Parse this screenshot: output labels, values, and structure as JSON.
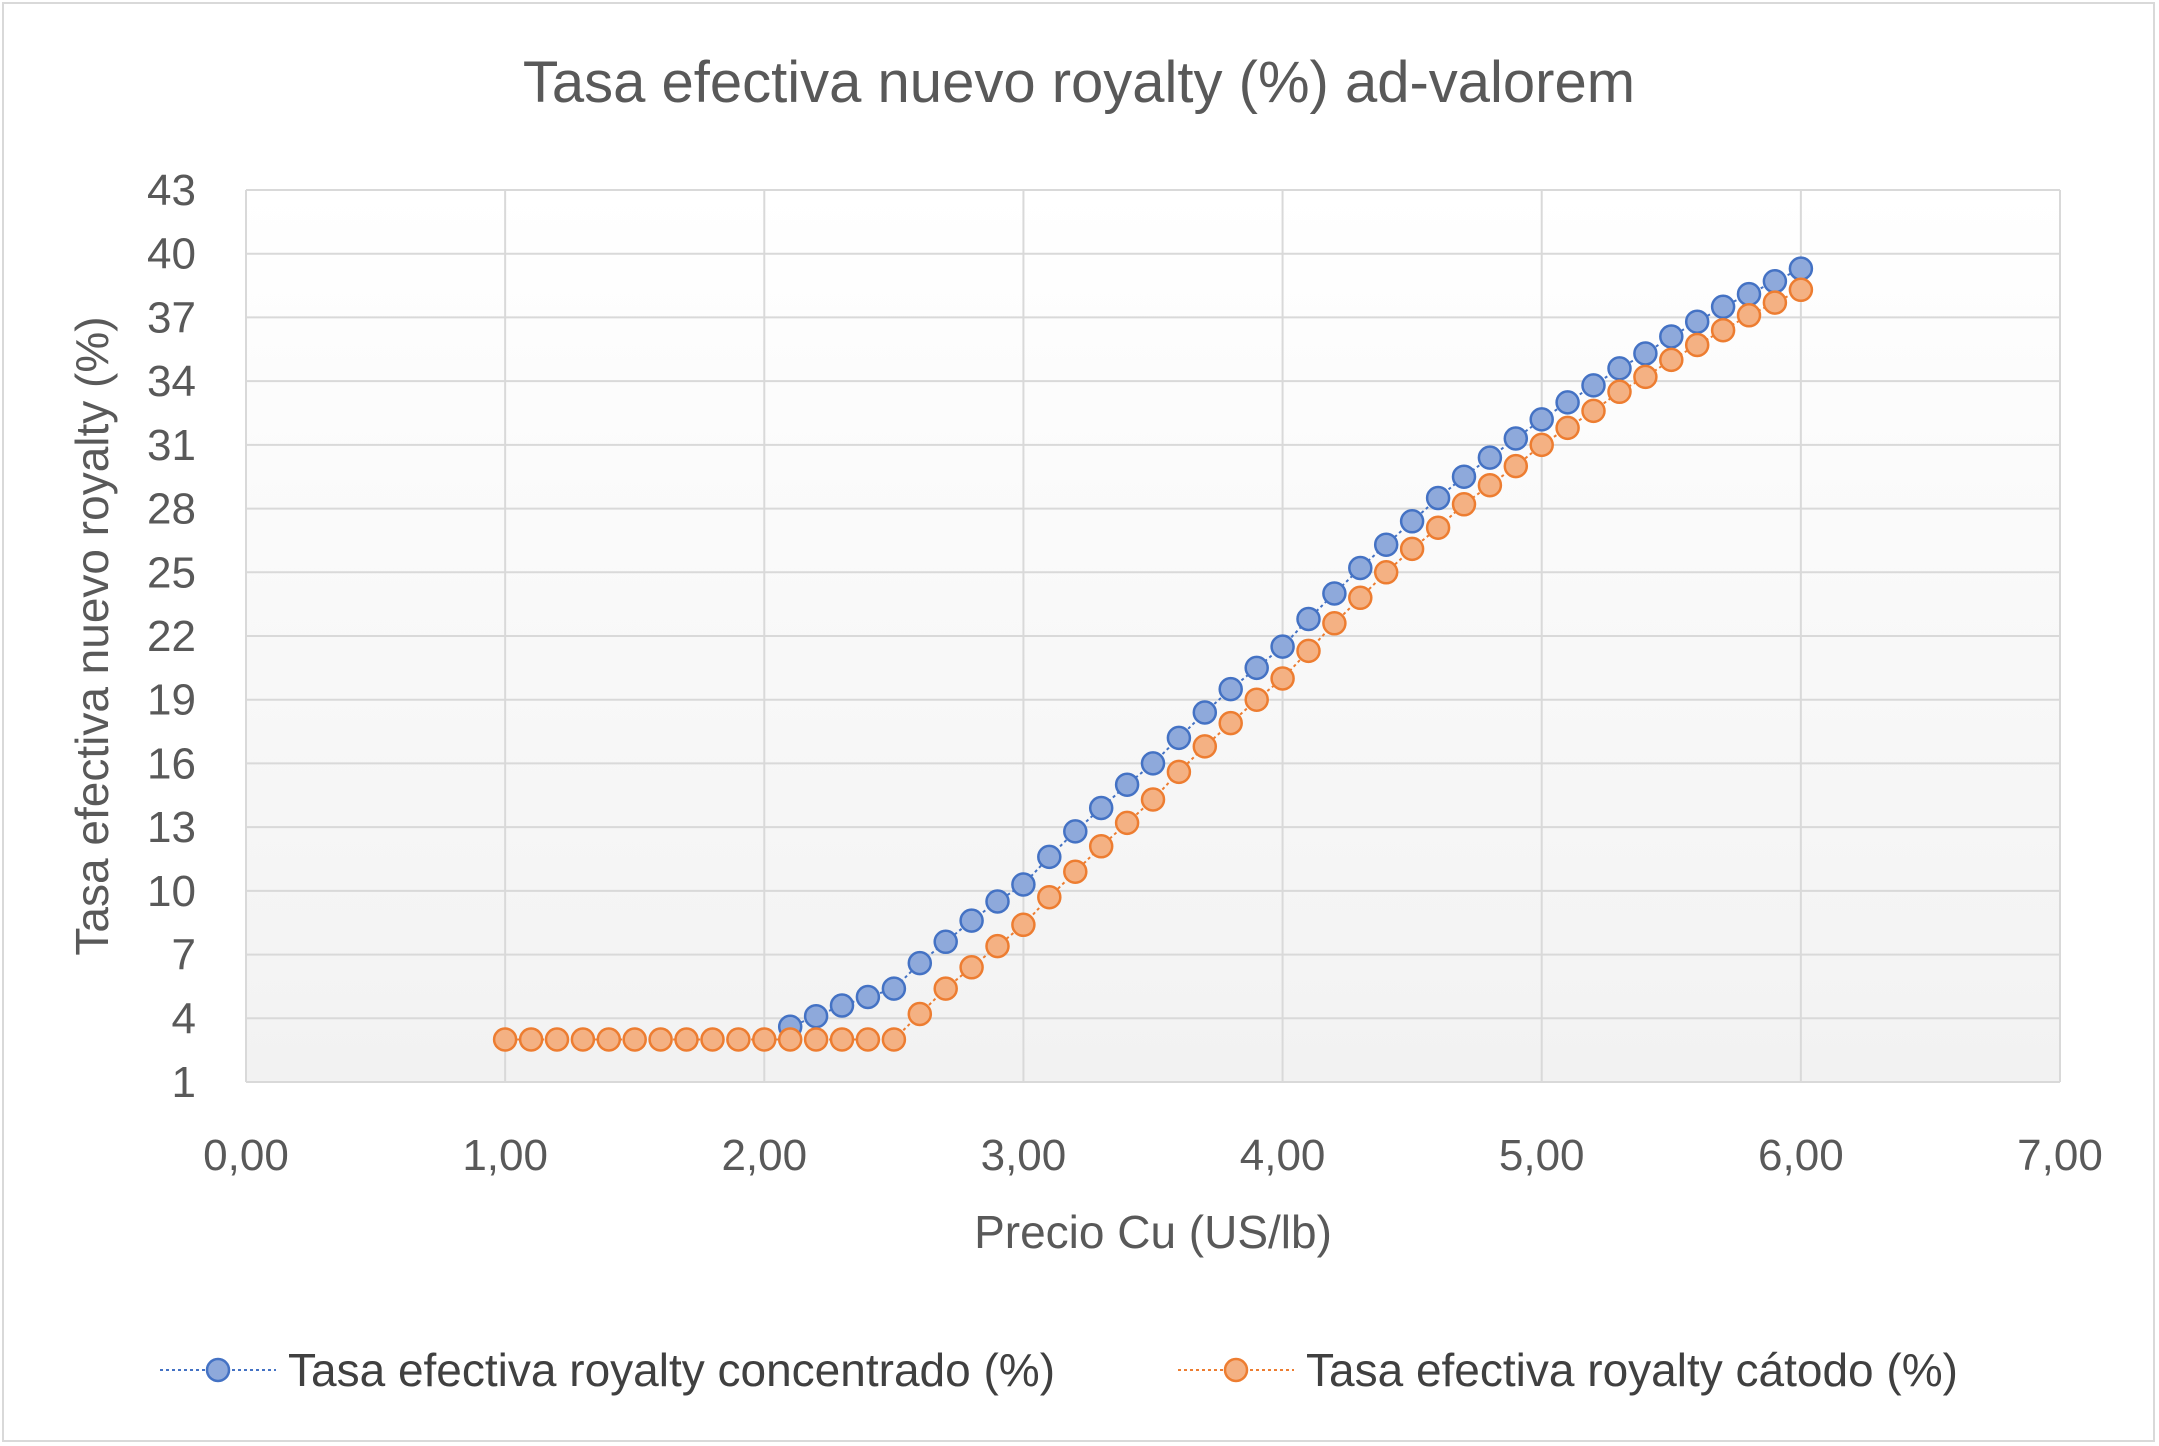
{
  "chart_data": {
    "type": "scatter",
    "title": "Tasa efectiva nuevo royalty (%) ad-valorem",
    "xlabel": "Precio Cu (US/lb)",
    "ylabel": "Tasa efectiva nuevo royalty (%)",
    "xlim": [
      0,
      7
    ],
    "ylim": [
      1,
      43
    ],
    "x_ticks": [
      "0,00",
      "1,00",
      "2,00",
      "3,00",
      "4,00",
      "5,00",
      "6,00",
      "7,00"
    ],
    "y_ticks": [
      "1",
      "4",
      "7",
      "10",
      "13",
      "16",
      "19",
      "22",
      "25",
      "28",
      "31",
      "34",
      "37",
      "40",
      "43"
    ],
    "grid": true,
    "legend_position": "bottom",
    "series": [
      {
        "name": "Tasa efectiva royalty concentrado (%)",
        "color": "#4472c4",
        "fill": "#8ea9db",
        "x": [
          2.1,
          2.2,
          2.3,
          2.4,
          2.5,
          2.6,
          2.7,
          2.8,
          2.9,
          3.0,
          3.1,
          3.2,
          3.3,
          3.4,
          3.5,
          3.6,
          3.7,
          3.8,
          3.9,
          4.0,
          4.1,
          4.2,
          4.3,
          4.4,
          4.5,
          4.6,
          4.7,
          4.8,
          4.9,
          5.0,
          5.1,
          5.2,
          5.3,
          5.4,
          5.5,
          5.6,
          5.7,
          5.8,
          5.9,
          6.0
        ],
        "y": [
          3.6,
          4.1,
          4.6,
          5.0,
          5.4,
          6.6,
          7.6,
          8.6,
          9.5,
          10.3,
          11.6,
          12.8,
          13.9,
          15.0,
          16.0,
          17.2,
          18.4,
          19.5,
          20.5,
          21.5,
          22.8,
          24.0,
          25.2,
          26.3,
          27.4,
          28.5,
          29.5,
          30.4,
          31.3,
          32.2,
          33.0,
          33.8,
          34.6,
          35.3,
          36.1,
          36.8,
          37.5,
          38.1,
          38.7,
          39.3
        ]
      },
      {
        "name": "Tasa efectiva royalty cátodo (%)",
        "color": "#ed7d31",
        "fill": "#f4b183",
        "x": [
          1.0,
          1.1,
          1.2,
          1.3,
          1.4,
          1.5,
          1.6,
          1.7,
          1.8,
          1.9,
          2.0,
          2.1,
          2.2,
          2.3,
          2.4,
          2.5,
          2.6,
          2.7,
          2.8,
          2.9,
          3.0,
          3.1,
          3.2,
          3.3,
          3.4,
          3.5,
          3.6,
          3.7,
          3.8,
          3.9,
          4.0,
          4.1,
          4.2,
          4.3,
          4.4,
          4.5,
          4.6,
          4.7,
          4.8,
          4.9,
          5.0,
          5.1,
          5.2,
          5.3,
          5.4,
          5.5,
          5.6,
          5.7,
          5.8,
          5.9,
          6.0
        ],
        "y": [
          3.0,
          3.0,
          3.0,
          3.0,
          3.0,
          3.0,
          3.0,
          3.0,
          3.0,
          3.0,
          3.0,
          3.0,
          3.0,
          3.0,
          3.0,
          3.0,
          4.2,
          5.4,
          6.4,
          7.4,
          8.4,
          9.7,
          10.9,
          12.1,
          13.2,
          14.3,
          15.6,
          16.8,
          17.9,
          19.0,
          20.0,
          21.3,
          22.6,
          23.8,
          25.0,
          26.1,
          27.1,
          28.2,
          29.1,
          30.0,
          31.0,
          31.8,
          32.6,
          33.5,
          34.2,
          35.0,
          35.7,
          36.4,
          37.1,
          37.7,
          38.3
        ]
      }
    ]
  }
}
